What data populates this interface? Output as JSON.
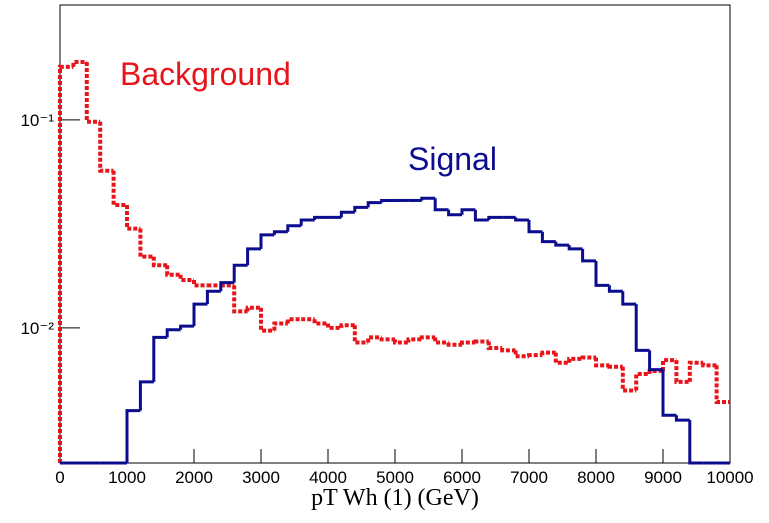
{
  "chart_data": {
    "type": "histogram",
    "x_label": "pT Wh (1)   (GeV)",
    "bins": [
      0,
      200,
      400,
      600,
      800,
      1000,
      1200,
      1400,
      1600,
      1800,
      2000,
      2200,
      2400,
      2600,
      2800,
      3000,
      3200,
      3400,
      3600,
      3800,
      4000,
      4200,
      4400,
      4600,
      4800,
      5000,
      5200,
      5400,
      5600,
      5800,
      6000,
      6200,
      6400,
      6600,
      6800,
      7000,
      7200,
      7400,
      7600,
      7800,
      8000,
      8200,
      8400,
      8600,
      8800,
      9000,
      9200,
      9400,
      9600,
      9800,
      10000
    ],
    "series": [
      {
        "name": "Background",
        "color": "#e8141a",
        "dashed": true,
        "values": [
          0.18,
          0.19,
          0.098,
          0.057,
          0.039,
          0.03,
          0.022,
          0.02,
          0.018,
          0.017,
          0.016,
          0.016,
          0.016,
          0.012,
          0.0125,
          0.0097,
          0.0105,
          0.011,
          0.011,
          0.0105,
          0.01,
          0.0103,
          0.0085,
          0.009,
          0.0088,
          0.0085,
          0.0088,
          0.009,
          0.0085,
          0.0083,
          0.0085,
          0.0086,
          0.008,
          0.0078,
          0.0073,
          0.0074,
          0.0076,
          0.0068,
          0.0071,
          0.0072,
          0.0066,
          0.0065,
          0.005,
          0.006,
          0.0062,
          0.007,
          0.0055,
          0.0068,
          0.0066,
          0.0044
        ]
      },
      {
        "name": "Signal",
        "color": "#0c0c8f",
        "dashed": false,
        "values": [
          0,
          0,
          0,
          0,
          0,
          0.004,
          0.0055,
          0.009,
          0.0098,
          0.0102,
          0.013,
          0.015,
          0.0165,
          0.02,
          0.024,
          0.028,
          0.029,
          0.031,
          0.033,
          0.034,
          0.034,
          0.036,
          0.038,
          0.04,
          0.041,
          0.041,
          0.041,
          0.042,
          0.037,
          0.035,
          0.037,
          0.033,
          0.034,
          0.034,
          0.033,
          0.029,
          0.026,
          0.025,
          0.024,
          0.021,
          0.016,
          0.015,
          0.013,
          0.0078,
          0.0063,
          0.0038,
          0.0036,
          0,
          0,
          0
        ]
      }
    ],
    "annotations": [
      "Background",
      "Signal"
    ],
    "xlim": [
      0,
      10000
    ],
    "xticks": [
      0,
      1000,
      2000,
      3000,
      4000,
      5000,
      6000,
      7000,
      8000,
      9000,
      10000
    ],
    "ylim": [
      0.00224,
      0.357
    ],
    "yticks": [
      {
        "value": 0.01,
        "label": "10⁻²"
      },
      {
        "value": 0.1,
        "label": "10⁻¹"
      }
    ],
    "log_y": true
  }
}
